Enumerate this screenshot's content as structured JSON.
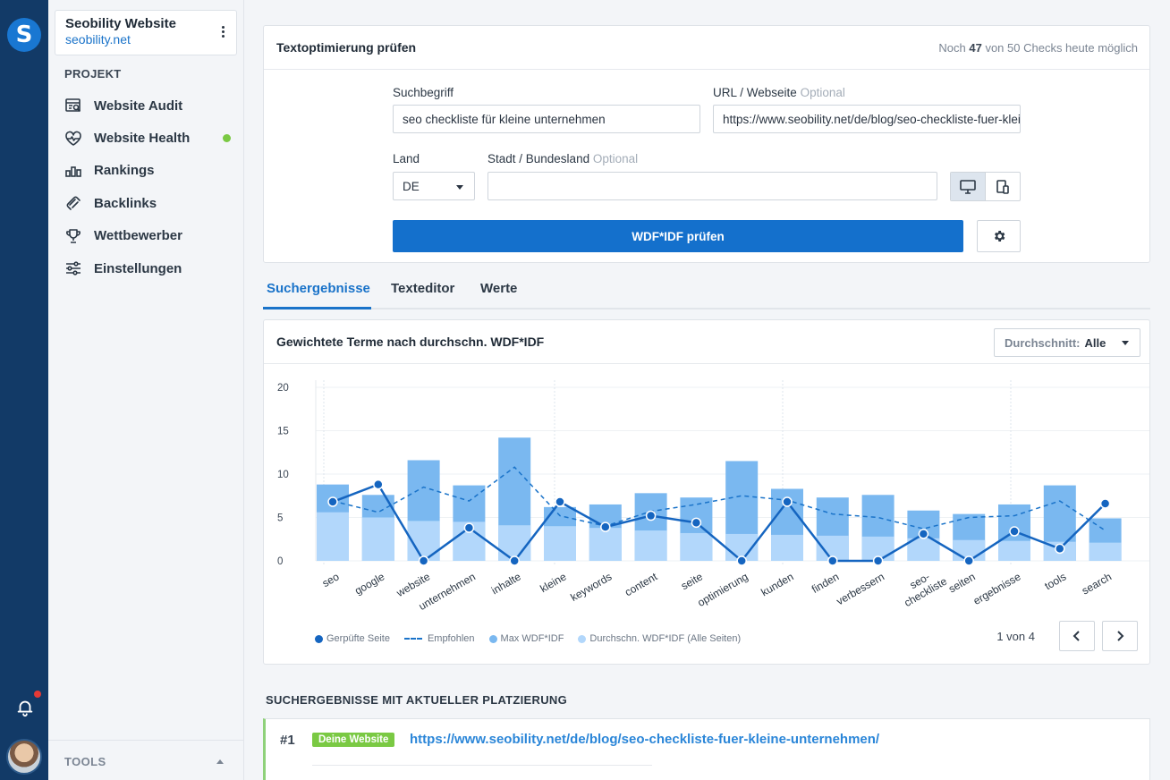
{
  "project": {
    "name": "Seobility Website",
    "domain": "seobility.net"
  },
  "rail": {
    "logo_letter": "S",
    "icons": [
      "bell-icon",
      "avatar"
    ]
  },
  "sidebar": {
    "section_label": "PROJEKT",
    "items": [
      {
        "label": "Website Audit",
        "icon": "audit-icon"
      },
      {
        "label": "Website Health",
        "icon": "heartbeat-icon",
        "status_color": "#7ac943"
      },
      {
        "label": "Rankings",
        "icon": "bar-chart-icon"
      },
      {
        "label": "Backlinks",
        "icon": "links-icon"
      },
      {
        "label": "Wettbewerber",
        "icon": "trophy-icon"
      },
      {
        "label": "Einstellungen",
        "icon": "sliders-icon"
      }
    ],
    "tools_label": "TOOLS"
  },
  "check": {
    "title": "Textoptimierung prüfen",
    "checks_prefix": "Noch",
    "checks_used": "47",
    "checks_suffix": "von 50 Checks heute möglich",
    "keyword_label": "Suchbegriff",
    "keyword_value": "seo checkliste für kleine unternehmen",
    "url_label": "URL / Webseite",
    "url_optional": "Optional",
    "url_value": "https://www.seobility.net/de/blog/seo-checkliste-fuer-kleine-unternehmen/",
    "country_label": "Land",
    "country_value": "DE",
    "city_label": "Stadt / Bundesland",
    "city_optional": "Optional",
    "city_value": "",
    "submit_label": "WDF*IDF prüfen"
  },
  "tabs": [
    "Suchergebnisse",
    "Texteditor",
    "Werte"
  ],
  "chart_card": {
    "title": "Gewichtete Terme nach durchschn. WDF*IDF",
    "avg_label": "Durchschnitt:",
    "avg_value": "Alle",
    "pager_text": "1 von 4",
    "legend": [
      "Gerpüfte Seite",
      "Empfohlen",
      "Max WDF*IDF",
      "Durchschn. WDF*IDF (Alle Seiten)"
    ]
  },
  "chart_data": {
    "type": "bar",
    "ylim": [
      0,
      20
    ],
    "yticks": [
      0,
      5,
      10,
      15,
      20
    ],
    "grid": true,
    "legend_position": "bottom-left",
    "categories": [
      "seo",
      "google",
      "website",
      "unternehmen",
      "inhalte",
      "kleine",
      "keywords",
      "content",
      "seite",
      "optimierung",
      "kunden",
      "finden",
      "verbessern",
      "seo-checkliste",
      "seiten",
      "ergebnisse",
      "tools",
      "search"
    ],
    "series": [
      {
        "name": "Max WDF*IDF",
        "type": "bar",
        "color": "#7ab8f0",
        "values": [
          8.8,
          7.6,
          11.6,
          8.7,
          14.2,
          6.2,
          6.5,
          7.8,
          7.3,
          11.5,
          8.3,
          7.3,
          7.6,
          5.8,
          5.4,
          6.5,
          8.7,
          4.9
        ]
      },
      {
        "name": "Durchschn. WDF*IDF (Alle Seiten)",
        "type": "bar",
        "color": "#b2d7fb",
        "values": [
          5.6,
          5.0,
          4.6,
          4.5,
          4.1,
          4.0,
          3.8,
          3.5,
          3.2,
          3.1,
          3.0,
          2.9,
          2.8,
          2.6,
          2.4,
          2.3,
          2.2,
          2.1
        ]
      },
      {
        "name": "Empfohlen",
        "type": "line-dashed",
        "color": "#1a73c9",
        "values": [
          6.9,
          5.6,
          8.5,
          6.9,
          10.8,
          5.2,
          4.0,
          5.7,
          6.5,
          7.5,
          7.0,
          5.4,
          5.0,
          3.7,
          5.0,
          5.2,
          6.9,
          3.5
        ]
      },
      {
        "name": "Gerpüfte Seite",
        "type": "line-markers",
        "color": "#1565c0",
        "values": [
          6.8,
          8.8,
          0,
          3.8,
          0,
          6.8,
          3.9,
          5.2,
          4.4,
          0,
          6.8,
          0,
          0,
          3.1,
          0,
          3.4,
          1.4,
          6.6
        ]
      }
    ]
  },
  "results": {
    "title": "SUCHERGEBNISSE MIT AKTUELLER PLATZIERUNG",
    "items": [
      {
        "rank": "#1",
        "badge": "Deine Website",
        "url": "https://www.seobility.net/de/blog/seo-checkliste-fuer-kleine-unternehmen/"
      }
    ]
  },
  "colors": {
    "accent": "#1470cc",
    "rail": "#123a67",
    "success": "#7ac943"
  }
}
